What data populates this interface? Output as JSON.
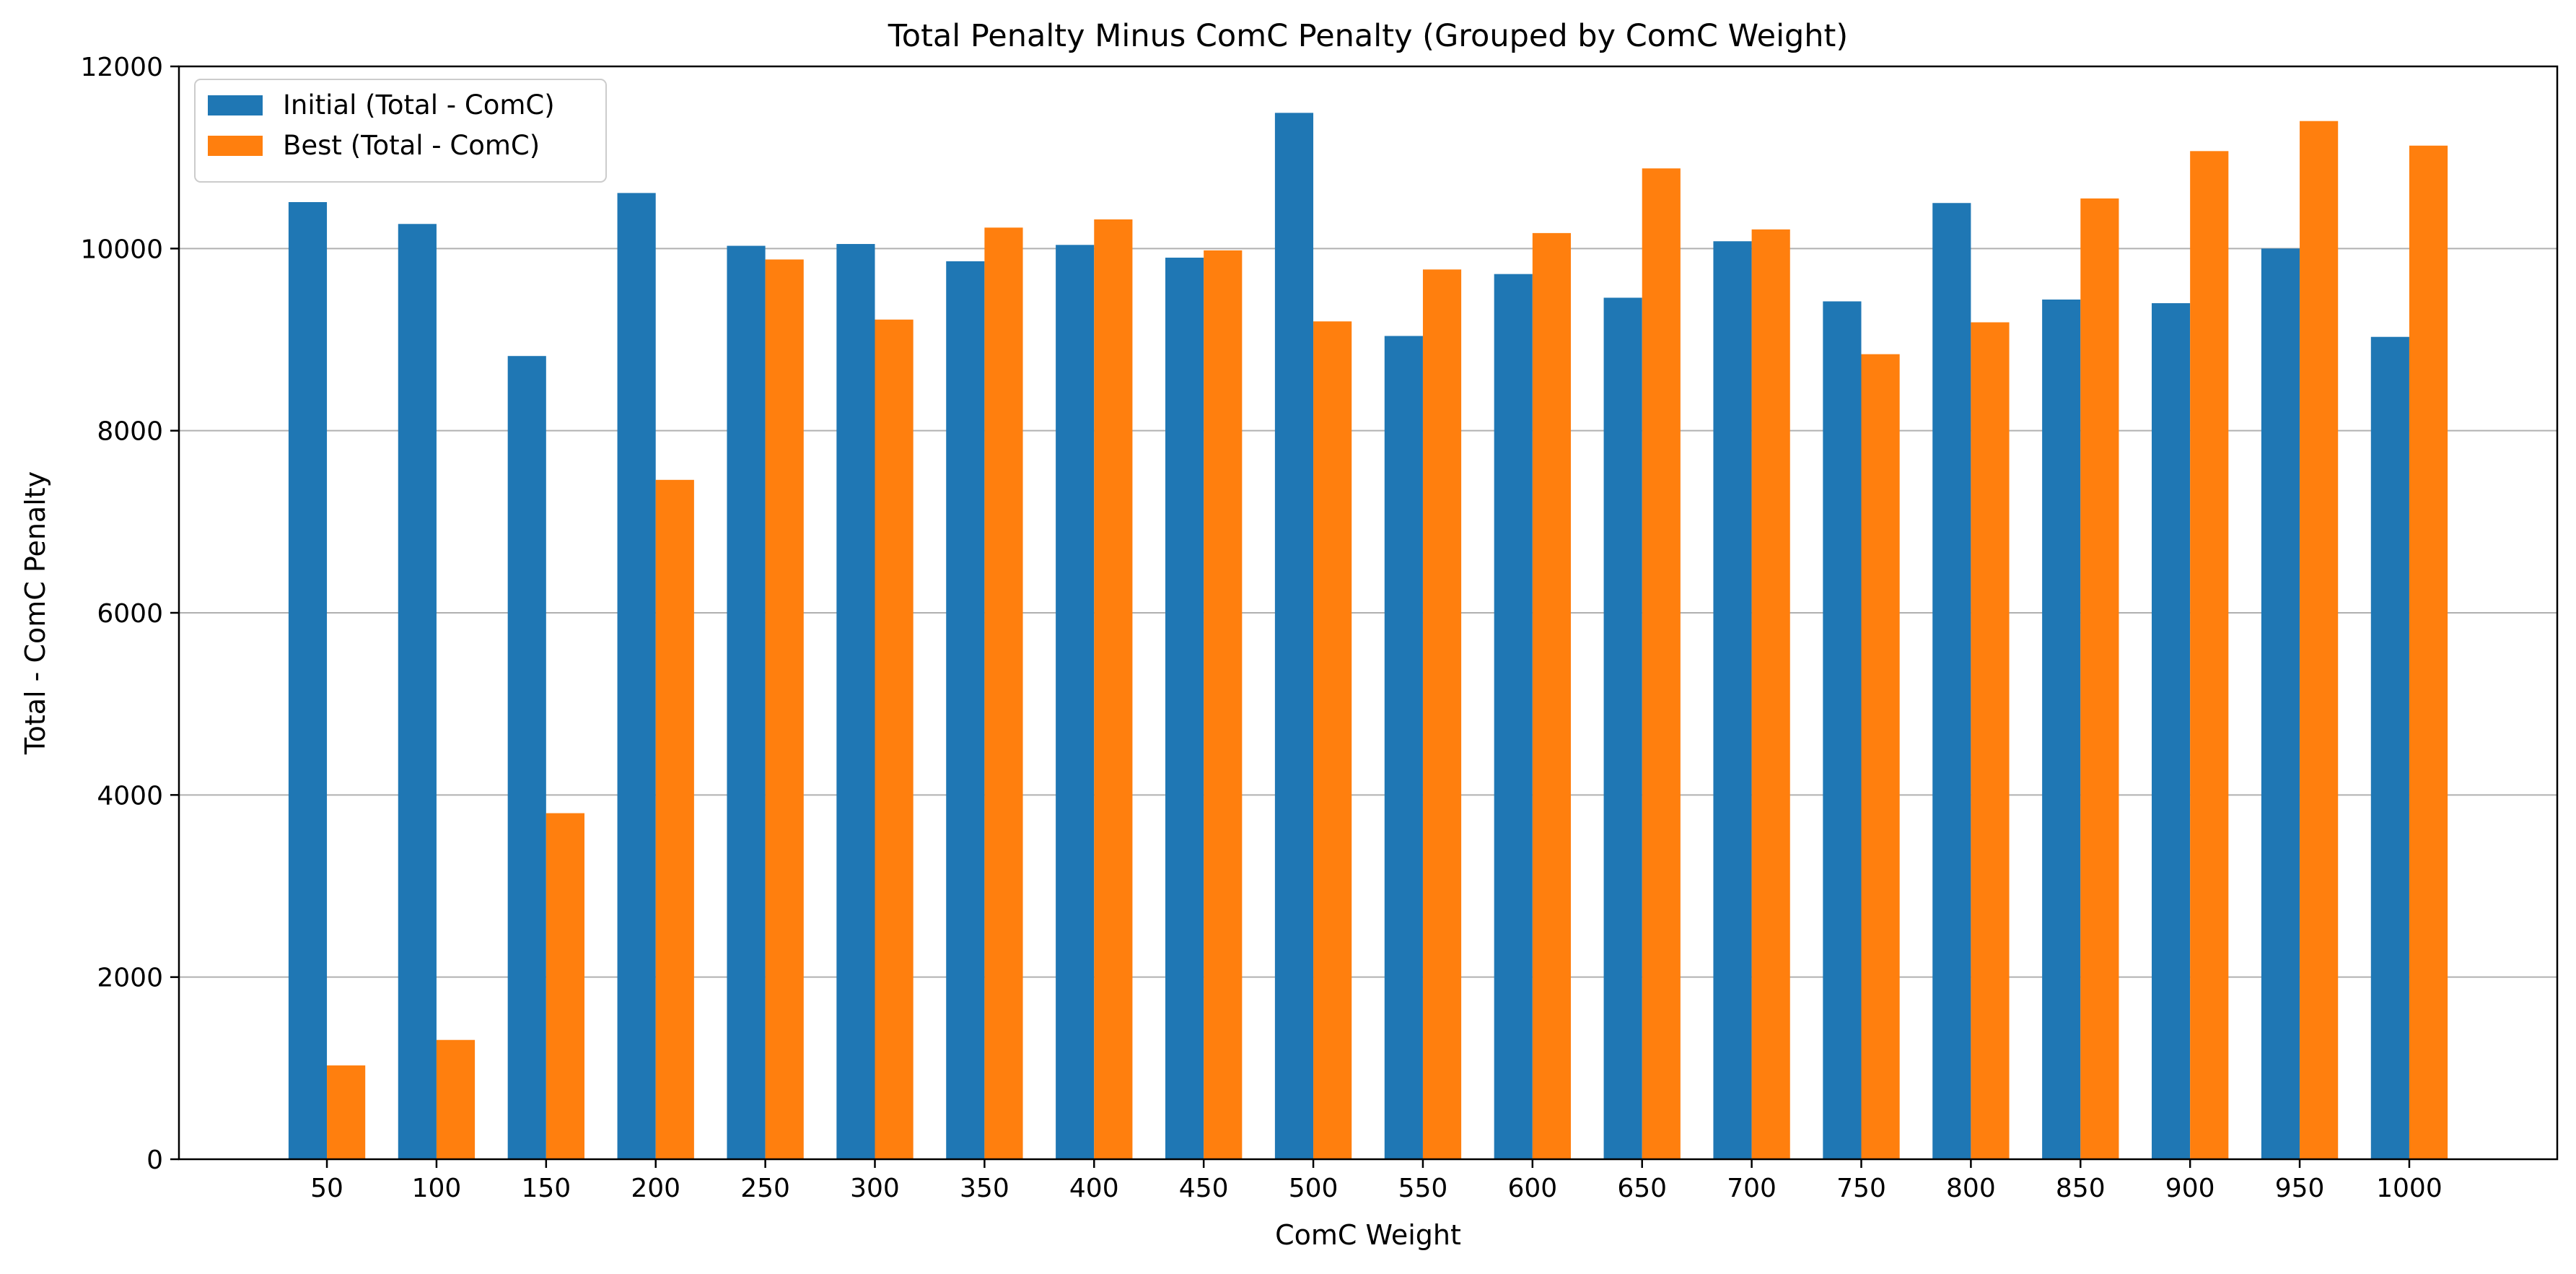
{
  "chart_data": {
    "type": "bar",
    "title": "Total Penalty Minus ComC Penalty (Grouped by ComC Weight)",
    "xlabel": "ComC Weight",
    "ylabel": "Total - ComC Penalty",
    "ylim": [
      0,
      12000
    ],
    "yticks": [
      0,
      2000,
      4000,
      6000,
      8000,
      10000,
      12000
    ],
    "grid": "horizontal",
    "legend_position": "top-left",
    "categories": [
      "50",
      "100",
      "150",
      "200",
      "250",
      "300",
      "350",
      "400",
      "450",
      "500",
      "550",
      "600",
      "650",
      "700",
      "750",
      "800",
      "850",
      "900",
      "950",
      "1000"
    ],
    "series": [
      {
        "name": "Initial (Total - ComC)",
        "color": "#1f77b4",
        "values": [
          10510,
          10270,
          8820,
          10610,
          10030,
          10050,
          9860,
          10040,
          9900,
          11490,
          9040,
          9720,
          9460,
          10080,
          9420,
          10500,
          9440,
          9400,
          10000,
          9030
        ]
      },
      {
        "name": "Best (Total - ComC)",
        "color": "#ff7f0e",
        "values": [
          1030,
          1310,
          3800,
          7460,
          9880,
          9220,
          10230,
          10320,
          9980,
          9200,
          9770,
          10170,
          10880,
          10210,
          8840,
          9190,
          10550,
          11070,
          11400,
          11130
        ]
      }
    ]
  }
}
